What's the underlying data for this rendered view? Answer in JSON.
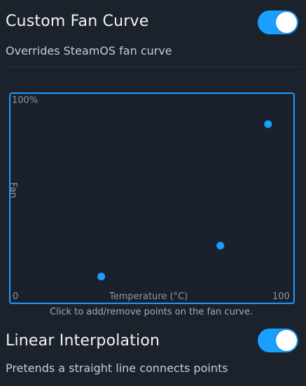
{
  "fan_curve": {
    "title": "Custom Fan Curve",
    "description": "Overrides SteamOS fan curve",
    "toggle_on": true
  },
  "chart": {
    "y_max_label": "100%",
    "y_axis_label": "Fan",
    "x_min_label": "0",
    "x_axis_label": "Temperature (°C)",
    "x_max_label": "100",
    "point_color": "#1a9fff",
    "border_color": "#1a9fff",
    "hint": "Click to add/remove points on the fan curve."
  },
  "chart_data": {
    "type": "scatter",
    "xlabel": "Temperature (°C)",
    "ylabel": "Fan",
    "xlim": [
      0,
      100
    ],
    "ylim": [
      0,
      100
    ],
    "points": [
      {
        "x": 29,
        "y": 12
      },
      {
        "x": 74,
        "y": 27
      },
      {
        "x": 92,
        "y": 86
      }
    ]
  },
  "linear_interpolation": {
    "title": "Linear Interpolation",
    "description": "Pretends a straight line connects points",
    "toggle_on": true
  }
}
